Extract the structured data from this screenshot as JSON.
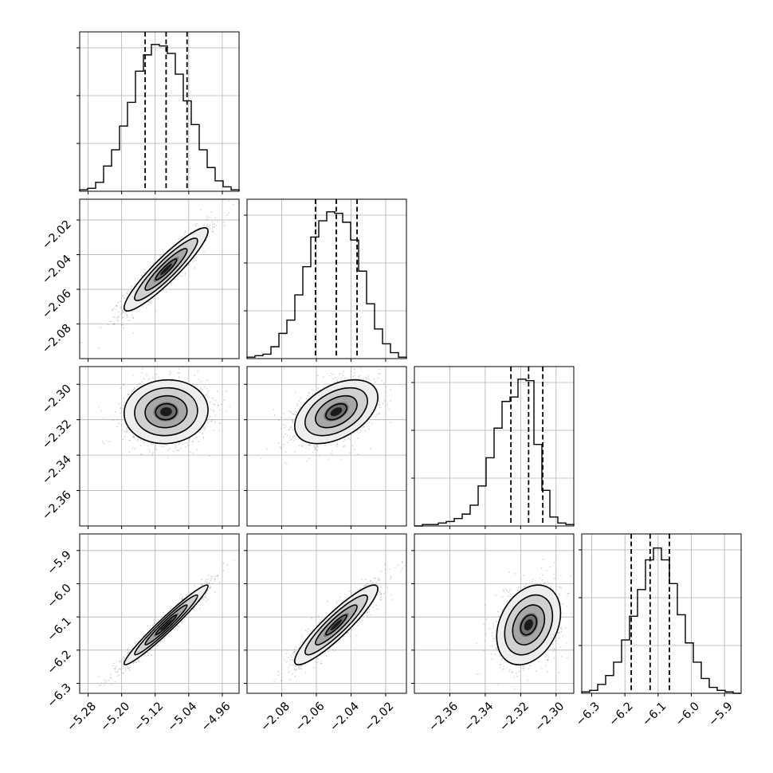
{
  "chart_data": {
    "type": "corner",
    "n_params": 4,
    "colors": {
      "line": "#000000",
      "grid": "#b0b0b0",
      "samples": "#8a8a8a"
    },
    "grid": true,
    "params": [
      {
        "range": [
          -5.3,
          -4.92
        ],
        "ticks": [
          -5.28,
          -5.2,
          -5.12,
          -5.04,
          -4.96
        ],
        "tick_labels": [
          "−5.28",
          "−5.20",
          "−5.12",
          "−5.04",
          "−4.96"
        ],
        "quantiles": [
          -5.144,
          -5.094,
          -5.044
        ],
        "hist": [
          0.01,
          0.02,
          0.06,
          0.17,
          0.28,
          0.44,
          0.6,
          0.81,
          0.92,
          0.99,
          0.98,
          0.93,
          0.79,
          0.61,
          0.45,
          0.28,
          0.16,
          0.07,
          0.03,
          0.01
        ],
        "mean": -5.094,
        "sigma": 0.05
      },
      {
        "range": [
          -2.1,
          -2.008
        ],
        "ticks": [
          -2.08,
          -2.06,
          -2.04,
          -2.02
        ],
        "tick_labels": [
          "−2.08",
          "−2.06",
          "−2.04",
          "−2.02"
        ],
        "quantiles": [
          -2.0605,
          -2.0485,
          -2.0365
        ],
        "hist": [
          0.01,
          0.02,
          0.03,
          0.08,
          0.17,
          0.26,
          0.43,
          0.62,
          0.82,
          0.93,
          0.99,
          0.98,
          0.92,
          0.8,
          0.59,
          0.37,
          0.2,
          0.1,
          0.04,
          0.01
        ],
        "mean": -2.0485,
        "sigma": 0.012
      },
      {
        "range": [
          -2.38,
          -2.29
        ],
        "ticks": [
          -2.36,
          -2.34,
          -2.32,
          -2.3
        ],
        "tick_labels": [
          "−2.36",
          "−2.34",
          "−2.32",
          "−2.30"
        ],
        "quantiles": [
          -2.3255,
          -2.3155,
          -2.3075
        ],
        "hist": [
          0.0,
          0.01,
          0.01,
          0.02,
          0.03,
          0.05,
          0.08,
          0.14,
          0.27,
          0.46,
          0.66,
          0.84,
          0.87,
          0.99,
          0.98,
          0.55,
          0.24,
          0.06,
          0.02,
          0.01
        ],
        "mean": -2.3155,
        "sigma": 0.009
      },
      {
        "range": [
          -6.33,
          -5.85
        ],
        "ticks": [
          -6.3,
          -6.2,
          -6.1,
          -6.0,
          -5.9
        ],
        "tick_labels": [
          "−6.3",
          "−6.2",
          "−6.1",
          "−6.0",
          "−5.9"
        ],
        "quantiles": [
          -6.181,
          -6.124,
          -6.066
        ],
        "hist": [
          0.01,
          0.02,
          0.06,
          0.12,
          0.21,
          0.36,
          0.52,
          0.7,
          0.9,
          0.98,
          0.9,
          0.74,
          0.53,
          0.34,
          0.21,
          0.1,
          0.04,
          0.02,
          0.01,
          0.0
        ],
        "mean": -6.124,
        "sigma": 0.06
      }
    ],
    "pairs": [
      {
        "x": 0,
        "y": 1,
        "corr": 0.92
      },
      {
        "x": 0,
        "y": 2,
        "corr": 0.05
      },
      {
        "x": 1,
        "y": 2,
        "corr": 0.45
      },
      {
        "x": 0,
        "y": 3,
        "corr": 0.97
      },
      {
        "x": 1,
        "y": 3,
        "corr": 0.91
      },
      {
        "x": 2,
        "y": 3,
        "corr": 0.3
      }
    ],
    "contour_levels_sigma": [
      0.5,
      1.0,
      1.5,
      2.0
    ]
  }
}
